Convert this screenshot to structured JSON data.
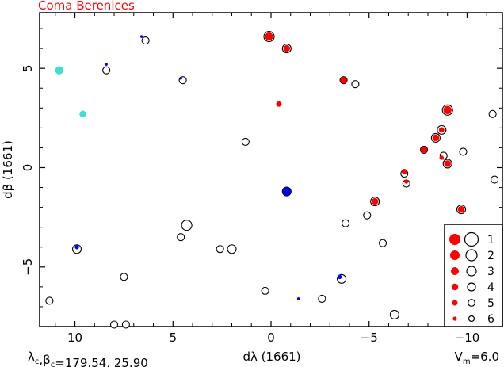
{
  "chart_data": {
    "type": "scatter",
    "title": "Coma Berenices",
    "title_color": "#ff0000",
    "xlabel": "dλ (1661)",
    "ylabel": "dβ (1661)",
    "xlim": [
      11.8,
      -11.8
    ],
    "ylim": [
      -8.0,
      7.8
    ],
    "x_ticks": [
      10,
      5,
      0,
      -5,
      -10
    ],
    "x_tick_labels": [
      "10",
      "5",
      "0",
      "−5",
      "−10"
    ],
    "y_ticks": [
      5,
      0,
      -5
    ],
    "y_tick_labels": [
      "5",
      "0",
      "−5"
    ],
    "grid": false,
    "footer_left": "λc,βc=179.54, 25.90",
    "footer_right": "Vm=6.0",
    "colors": {
      "red": "#ff0000",
      "blue": "#0000ff",
      "cyan": "#40e0d0",
      "black": "#000000"
    },
    "legend": {
      "position": "bottom-right",
      "entries": [
        {
          "mag": 1,
          "label": "1"
        },
        {
          "mag": 2,
          "label": "2"
        },
        {
          "mag": 3,
          "label": "3"
        },
        {
          "mag": 4,
          "label": "4"
        },
        {
          "mag": 5,
          "label": "5"
        },
        {
          "mag": 6,
          "label": "6"
        }
      ]
    },
    "open_circles": [
      {
        "x": 0.1,
        "y": 6.6,
        "mag": 2
      },
      {
        "x": -0.8,
        "y": 6.0,
        "mag": 3
      },
      {
        "x": 6.4,
        "y": 6.4,
        "mag": 4
      },
      {
        "x": 8.4,
        "y": 4.9,
        "mag": 4
      },
      {
        "x": 4.5,
        "y": 4.4,
        "mag": 4
      },
      {
        "x": -3.7,
        "y": 4.4,
        "mag": 4
      },
      {
        "x": -4.3,
        "y": 4.2,
        "mag": 4
      },
      {
        "x": -9.0,
        "y": 2.9,
        "mag": 2
      },
      {
        "x": -11.3,
        "y": 2.7,
        "mag": 4
      },
      {
        "x": 1.3,
        "y": 1.3,
        "mag": 4
      },
      {
        "x": -8.7,
        "y": 1.9,
        "mag": 3
      },
      {
        "x": -8.4,
        "y": 1.5,
        "mag": 3
      },
      {
        "x": -7.8,
        "y": 0.9,
        "mag": 4
      },
      {
        "x": -8.8,
        "y": 0.6,
        "mag": 4
      },
      {
        "x": -9.8,
        "y": 0.8,
        "mag": 4
      },
      {
        "x": -9.0,
        "y": 0.2,
        "mag": 3
      },
      {
        "x": -6.8,
        "y": -0.3,
        "mag": 4
      },
      {
        "x": -6.9,
        "y": -0.8,
        "mag": 4
      },
      {
        "x": -11.4,
        "y": -0.6,
        "mag": 4
      },
      {
        "x": -0.8,
        "y": -1.2,
        "mag": 3
      },
      {
        "x": -5.3,
        "y": -1.7,
        "mag": 3
      },
      {
        "x": -9.7,
        "y": -2.1,
        "mag": 3
      },
      {
        "x": -4.9,
        "y": -2.4,
        "mag": 4
      },
      {
        "x": 4.3,
        "y": -2.9,
        "mag": 2
      },
      {
        "x": -3.8,
        "y": -2.8,
        "mag": 4
      },
      {
        "x": 4.6,
        "y": -3.5,
        "mag": 4
      },
      {
        "x": 2.0,
        "y": -4.1,
        "mag": 3
      },
      {
        "x": 2.6,
        "y": -4.1,
        "mag": 4
      },
      {
        "x": -5.7,
        "y": -3.8,
        "mag": 4
      },
      {
        "x": 9.9,
        "y": -4.1,
        "mag": 3
      },
      {
        "x": 7.5,
        "y": -5.5,
        "mag": 4
      },
      {
        "x": -3.6,
        "y": -5.6,
        "mag": 3
      },
      {
        "x": 0.3,
        "y": -6.2,
        "mag": 4
      },
      {
        "x": -2.6,
        "y": -6.6,
        "mag": 4
      },
      {
        "x": 11.3,
        "y": -6.7,
        "mag": 4
      },
      {
        "x": -6.3,
        "y": -7.4,
        "mag": 3
      },
      {
        "x": 8.0,
        "y": -7.9,
        "mag": 4
      },
      {
        "x": 7.4,
        "y": -7.9,
        "mag": 4
      }
    ],
    "filled_points": [
      {
        "x": 0.1,
        "y": 6.6,
        "mag": 2,
        "color": "red"
      },
      {
        "x": -0.8,
        "y": 6.0,
        "mag": 3,
        "color": "red"
      },
      {
        "x": 6.6,
        "y": 6.6,
        "mag": 6,
        "color": "blue"
      },
      {
        "x": 8.4,
        "y": 5.2,
        "mag": 6,
        "color": "blue"
      },
      {
        "x": 10.8,
        "y": 4.9,
        "mag": 2,
        "color": "cyan"
      },
      {
        "x": 4.6,
        "y": 4.5,
        "mag": 6,
        "color": "blue"
      },
      {
        "x": -3.7,
        "y": 4.4,
        "mag": 3,
        "color": "red"
      },
      {
        "x": -0.4,
        "y": 3.2,
        "mag": 4,
        "color": "red"
      },
      {
        "x": -9.0,
        "y": 2.9,
        "mag": 2,
        "color": "red"
      },
      {
        "x": 9.6,
        "y": 2.7,
        "mag": 3,
        "color": "cyan"
      },
      {
        "x": -8.7,
        "y": 1.9,
        "mag": 4,
        "color": "red"
      },
      {
        "x": -8.4,
        "y": 1.5,
        "mag": 3,
        "color": "red"
      },
      {
        "x": -7.8,
        "y": 0.9,
        "mag": 3,
        "color": "red"
      },
      {
        "x": -8.7,
        "y": 0.5,
        "mag": 5,
        "color": "red"
      },
      {
        "x": -9.0,
        "y": 0.2,
        "mag": 3,
        "color": "red"
      },
      {
        "x": -6.8,
        "y": -0.2,
        "mag": 4,
        "color": "red"
      },
      {
        "x": -6.9,
        "y": -0.7,
        "mag": 5,
        "color": "red"
      },
      {
        "x": -0.8,
        "y": -1.2,
        "mag": 2,
        "color": "blue"
      },
      {
        "x": -5.3,
        "y": -1.7,
        "mag": 3,
        "color": "red"
      },
      {
        "x": -9.7,
        "y": -2.1,
        "mag": 3,
        "color": "red"
      },
      {
        "x": 9.9,
        "y": -4.0,
        "mag": 5,
        "color": "blue"
      },
      {
        "x": -3.5,
        "y": -5.5,
        "mag": 5,
        "color": "blue"
      },
      {
        "x": -1.4,
        "y": -6.6,
        "mag": 6,
        "color": "blue"
      }
    ]
  }
}
